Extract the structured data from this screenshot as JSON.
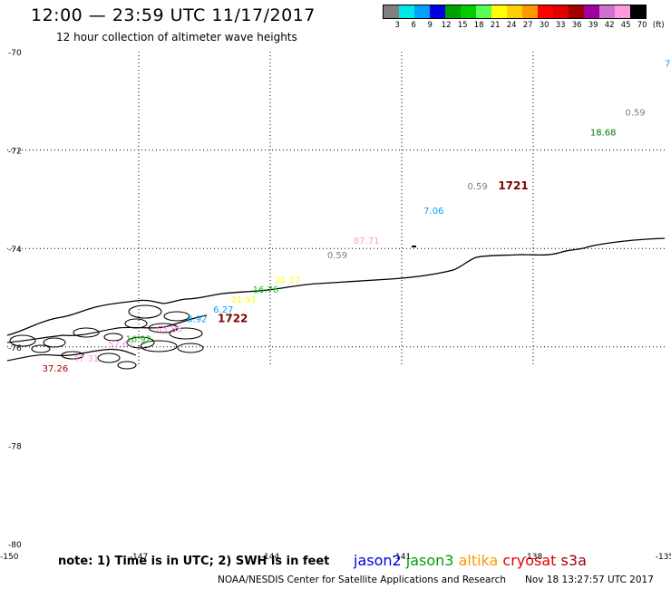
{
  "header": {
    "title": "12:00 — 23:59 UTC 11/17/2017",
    "subtitle": "12 hour collection of altimeter wave heights"
  },
  "legend": {
    "colors": [
      "#7f7f7f",
      "#00e5e5",
      "#00a0ff",
      "#0000e0",
      "#00a000",
      "#00cc00",
      "#55ff55",
      "#ffff00",
      "#ffd000",
      "#ff9900",
      "#ff0000",
      "#e00000",
      "#a00000",
      "#a000a0",
      "#d070d0",
      "#ff99dd",
      "#000000"
    ],
    "labels": [
      "3",
      "6",
      "9",
      "12",
      "15",
      "18",
      "21",
      "24",
      "27",
      "30",
      "33",
      "36",
      "39",
      "42",
      "45",
      "70",
      "(ft)"
    ]
  },
  "map": {
    "lat_labels": [
      "-70",
      "-72",
      "-74",
      "-76",
      "-78",
      "-80"
    ],
    "lon_labels": [
      "-150",
      "-147",
      "-144",
      "-141",
      "-138",
      "-135"
    ],
    "observations": [
      {
        "text": "7",
        "color": "#00a0ff",
        "lon": -135.0,
        "lat": -70.3
      },
      {
        "text": "0.59",
        "color": "#7f7f7f",
        "lon": -135.9,
        "lat": -71.3
      },
      {
        "text": "18.68",
        "color": "#008000",
        "lon": -136.7,
        "lat": -71.7
      },
      {
        "text": "0.59",
        "color": "#7f7f7f",
        "lon": -139.5,
        "lat": -72.8
      },
      {
        "text": "1721",
        "color": "#800000",
        "lon": -138.8,
        "lat": -72.8,
        "bold": true
      },
      {
        "text": "7.06",
        "color": "#00a0ff",
        "lon": -140.5,
        "lat": -73.3
      },
      {
        "text": "87.71",
        "color": "#ff99dd",
        "lon": -142.1,
        "lat": -73.9
      },
      {
        "text": "0.59",
        "color": "#7f7f7f",
        "lon": -142.7,
        "lat": -74.2
      },
      {
        "text": "21.17",
        "color": "#ffff00",
        "lon": -143.9,
        "lat": -74.7
      },
      {
        "text": "16.76",
        "color": "#00cc00",
        "lon": -144.4,
        "lat": -74.9
      },
      {
        "text": "21.91",
        "color": "#ffff00",
        "lon": -144.9,
        "lat": -75.1
      },
      {
        "text": "6.27",
        "color": "#00a0ff",
        "lon": -145.3,
        "lat": -75.3
      },
      {
        "text": "1722",
        "color": "#800000",
        "lon": -145.2,
        "lat": -75.5,
        "bold": true
      },
      {
        "text": "8.92",
        "color": "#00a0ff",
        "lon": -145.9,
        "lat": -75.5
      },
      {
        "text": "65.88",
        "color": "#ff99dd",
        "lon": -146.6,
        "lat": -75.7
      },
      {
        "text": "16.92",
        "color": "#00cc00",
        "lon": -147.3,
        "lat": -75.9
      },
      {
        "text": "57.67",
        "color": "#ff99dd",
        "lon": -147.7,
        "lat": -76.0
      },
      {
        "text": "47.31",
        "color": "#ff99dd",
        "lon": -148.5,
        "lat": -76.3
      },
      {
        "text": "37.26",
        "color": "#a00000",
        "lon": -149.2,
        "lat": -76.5
      }
    ]
  },
  "footer": {
    "note": "note: 1) Time is in UTC; 2) SWH is in feet",
    "satellites": [
      {
        "name": "jason2",
        "color": "#0000e0"
      },
      {
        "name": "jason3",
        "color": "#00a000"
      },
      {
        "name": "altika",
        "color": "#ff9900"
      },
      {
        "name": "cryosat",
        "color": "#e00000"
      },
      {
        "name": "s3a",
        "color": "#a00000"
      }
    ],
    "credit": "NOAA/NESDIS Center for Satellite Applications and Research",
    "timestamp": "Nov 18 13:27:57 UTC 2017"
  }
}
